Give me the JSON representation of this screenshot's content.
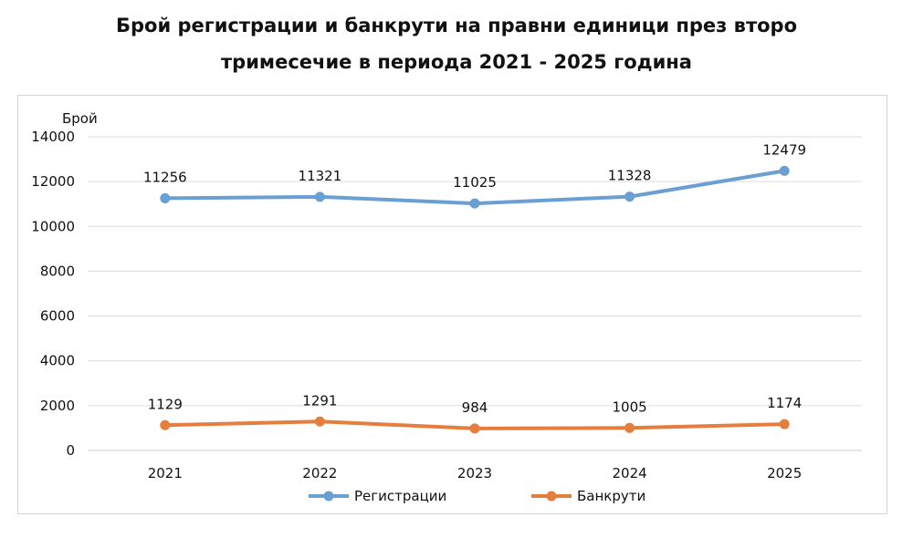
{
  "chart_data": {
    "type": "line",
    "title_line1": "Брой регистрации и банкрути на правни единици през второ",
    "title_line2": "тримесечие в периода 2021 - 2025 година",
    "ylabel": "Брой",
    "xlabel": "",
    "categories": [
      "2021",
      "2022",
      "2023",
      "2024",
      "2025"
    ],
    "ylim": [
      0,
      14000
    ],
    "yticks": [
      0,
      2000,
      4000,
      6000,
      8000,
      10000,
      12000,
      14000
    ],
    "grid": true,
    "legend_position": "bottom",
    "series": [
      {
        "name": "Регистрации",
        "color": "#6a9fd4",
        "values": [
          11256,
          11321,
          11025,
          11328,
          12479
        ]
      },
      {
        "name": "Банкрути",
        "color": "#e57d3d",
        "values": [
          1129,
          1291,
          984,
          1005,
          1174
        ]
      }
    ]
  }
}
